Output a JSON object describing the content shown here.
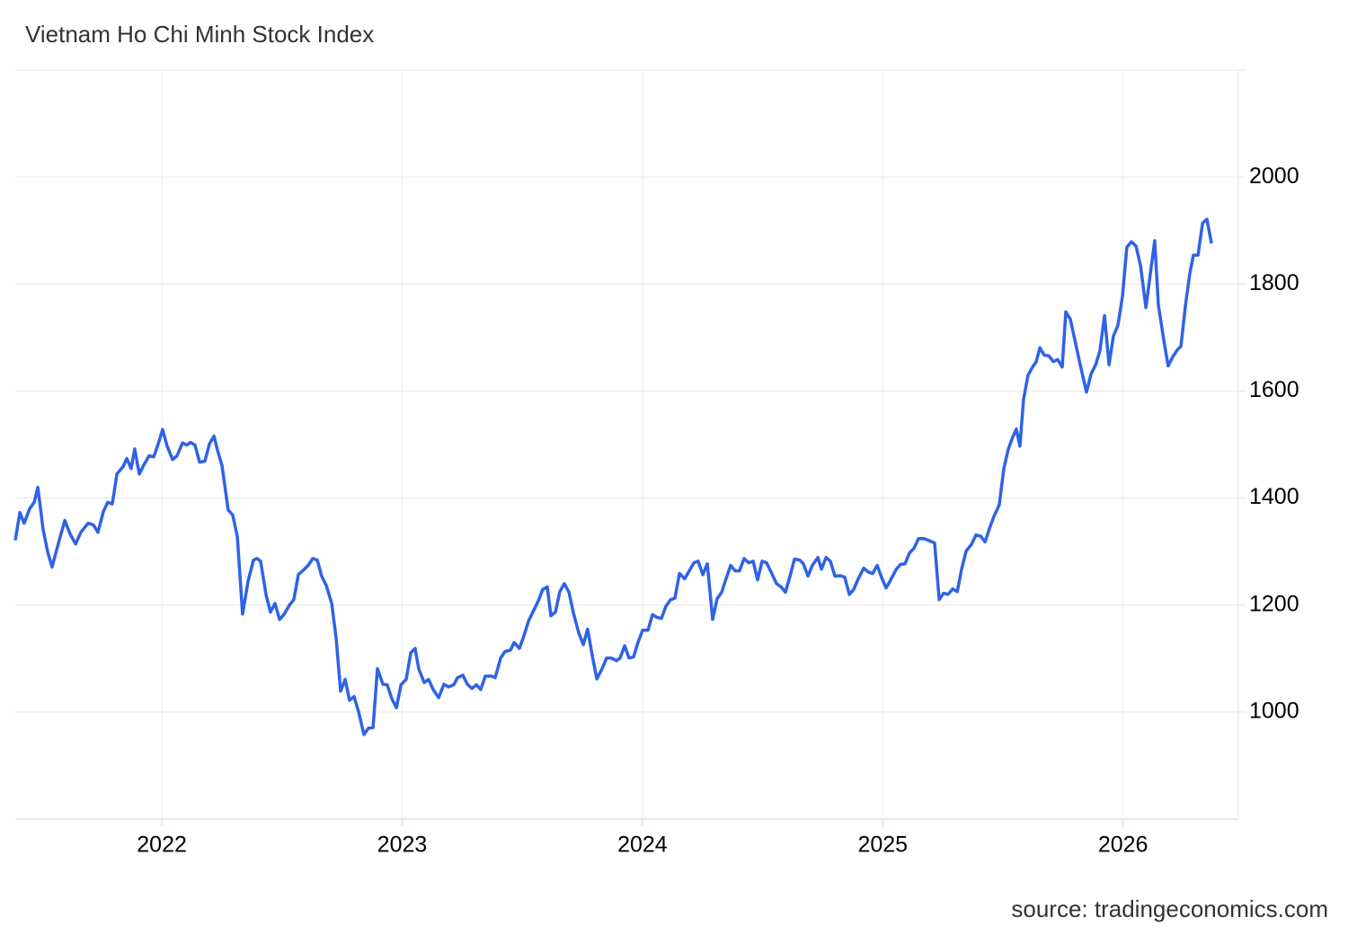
{
  "chart_data": {
    "type": "line",
    "title": "Vietnam Ho Chi Minh Stock Index",
    "source": "source: tradingeconomics.com",
    "xlim": [
      2021.39,
      2026.48
    ],
    "xticks": [
      2022,
      2023,
      2024,
      2025,
      2026
    ],
    "ylim": [
      800,
      2200
    ],
    "yticks": [
      1000,
      1200,
      1400,
      1600,
      1800,
      2000
    ],
    "grid": true,
    "series": [
      {
        "color": "#2f62e8",
        "x": [
          2021.39,
          2021.409,
          2021.427,
          2021.45,
          2021.469,
          2021.484,
          2021.506,
          2021.525,
          2021.543,
          2021.57,
          2021.596,
          2021.618,
          2021.641,
          2021.663,
          2021.693,
          2021.715,
          2021.734,
          2021.757,
          2021.775,
          2021.794,
          2021.813,
          2021.839,
          2021.854,
          2021.872,
          2021.887,
          2021.906,
          2021.925,
          2021.947,
          2021.966,
          2021.985,
          2022.003,
          2022.022,
          2022.045,
          2022.063,
          2022.086,
          2022.104,
          2022.119,
          2022.138,
          2022.157,
          2022.179,
          2022.198,
          2022.217,
          2022.232,
          2022.25,
          2022.276,
          2022.295,
          2022.314,
          2022.336,
          2022.359,
          2022.381,
          2022.396,
          2022.411,
          2022.434,
          2022.452,
          2022.471,
          2022.49,
          2022.508,
          2022.531,
          2022.549,
          2022.568,
          2022.591,
          2022.609,
          2022.628,
          2022.647,
          2022.665,
          2022.684,
          2022.707,
          2022.725,
          2022.744,
          2022.763,
          2022.781,
          2022.8,
          2022.819,
          2022.841,
          2022.86,
          2022.879,
          2022.897,
          2022.92,
          2022.938,
          2022.957,
          2022.976,
          2022.995,
          2023.017,
          2023.036,
          2023.054,
          2023.069,
          2023.092,
          2023.11,
          2023.129,
          2023.152,
          2023.174,
          2023.193,
          2023.215,
          2023.23,
          2023.253,
          2023.271,
          2023.29,
          2023.309,
          2023.327,
          2023.346,
          2023.372,
          2023.387,
          2023.41,
          2023.428,
          2023.451,
          2023.466,
          2023.488,
          2023.507,
          2023.526,
          2023.544,
          2023.567,
          2023.585,
          2023.604,
          2023.619,
          2023.638,
          2023.656,
          2023.675,
          2023.694,
          2023.713,
          2023.735,
          2023.754,
          2023.772,
          2023.791,
          2023.81,
          2023.832,
          2023.851,
          2023.87,
          2023.892,
          2023.907,
          2023.926,
          2023.944,
          2023.963,
          2023.982,
          2024.001,
          2024.023,
          2024.042,
          2024.06,
          2024.079,
          2024.098,
          2024.117,
          2024.135,
          2024.154,
          2024.176,
          2024.195,
          2024.214,
          2024.232,
          2024.251,
          2024.27,
          2024.292,
          2024.311,
          2024.33,
          2024.348,
          2024.367,
          2024.386,
          2024.404,
          2024.423,
          2024.442,
          2024.461,
          2024.479,
          2024.498,
          2024.517,
          2024.535,
          2024.558,
          2024.577,
          2024.595,
          2024.614,
          2024.633,
          2024.655,
          2024.67,
          2024.689,
          2024.707,
          2024.73,
          2024.745,
          2024.764,
          2024.782,
          2024.801,
          2024.823,
          2024.842,
          2024.861,
          2024.879,
          2024.898,
          2024.921,
          2024.939,
          2024.958,
          2024.977,
          2024.995,
          2025.014,
          2025.033,
          2025.055,
          2025.074,
          2025.093,
          2025.111,
          2025.13,
          2025.149,
          2025.171,
          2025.19,
          2025.216,
          2025.235,
          2025.253,
          2025.272,
          2025.291,
          2025.31,
          2025.328,
          2025.347,
          2025.369,
          2025.388,
          2025.407,
          2025.426,
          2025.444,
          2025.463,
          2025.485,
          2025.504,
          2025.523,
          2025.541,
          2025.556,
          2025.571,
          2025.586,
          2025.605,
          2025.624,
          2025.639,
          2025.654,
          2025.672,
          2025.691,
          2025.71,
          2025.728,
          2025.747,
          2025.762,
          2025.781,
          2025.8,
          2025.818,
          2025.833,
          2025.848,
          2025.867,
          2025.886,
          2025.904,
          2025.923,
          2025.942,
          2025.96,
          2025.979,
          2025.998,
          2026.016,
          2026.035,
          2026.054,
          2026.073,
          2026.095,
          2026.114,
          2026.132,
          2026.147,
          2026.17,
          2026.188,
          2026.207,
          2026.226,
          2026.241,
          2026.26,
          2026.278,
          2026.293,
          2026.312,
          2026.331,
          2026.349,
          2026.368
        ],
        "values": [
          1321,
          1373,
          1353,
          1380,
          1392,
          1420,
          1341,
          1299,
          1271,
          1316,
          1358,
          1333,
          1314,
          1336,
          1353,
          1350,
          1336,
          1375,
          1392,
          1389,
          1445,
          1459,
          1474,
          1455,
          1492,
          1445,
          1462,
          1479,
          1477,
          1501,
          1528,
          1497,
          1472,
          1479,
          1503,
          1499,
          1504,
          1499,
          1467,
          1469,
          1501,
          1516,
          1489,
          1461,
          1378,
          1368,
          1328,
          1183,
          1245,
          1284,
          1287,
          1282,
          1218,
          1187,
          1203,
          1173,
          1182,
          1200,
          1210,
          1257,
          1266,
          1274,
          1287,
          1284,
          1254,
          1237,
          1203,
          1139,
          1039,
          1061,
          1022,
          1029,
          1000,
          958,
          970,
          971,
          1081,
          1052,
          1051,
          1025,
          1008,
          1051,
          1061,
          1111,
          1119,
          1081,
          1055,
          1061,
          1042,
          1027,
          1052,
          1047,
          1051,
          1064,
          1069,
          1052,
          1044,
          1051,
          1042,
          1067,
          1067,
          1064,
          1101,
          1113,
          1116,
          1130,
          1119,
          1143,
          1170,
          1187,
          1208,
          1229,
          1234,
          1180,
          1187,
          1225,
          1240,
          1224,
          1185,
          1148,
          1126,
          1155,
          1106,
          1062,
          1081,
          1101,
          1101,
          1096,
          1101,
          1124,
          1101,
          1103,
          1131,
          1153,
          1153,
          1182,
          1177,
          1175,
          1198,
          1210,
          1213,
          1259,
          1249,
          1264,
          1279,
          1282,
          1257,
          1277,
          1173,
          1212,
          1224,
          1249,
          1274,
          1264,
          1264,
          1287,
          1279,
          1282,
          1247,
          1282,
          1279,
          1262,
          1240,
          1234,
          1224,
          1254,
          1286,
          1284,
          1277,
          1254,
          1274,
          1289,
          1267,
          1289,
          1282,
          1254,
          1255,
          1252,
          1220,
          1229,
          1249,
          1269,
          1262,
          1259,
          1274,
          1252,
          1232,
          1247,
          1266,
          1276,
          1277,
          1297,
          1306,
          1324,
          1324,
          1321,
          1316,
          1210,
          1222,
          1220,
          1230,
          1225,
          1267,
          1301,
          1313,
          1331,
          1329,
          1318,
          1343,
          1366,
          1387,
          1455,
          1492,
          1514,
          1529,
          1497,
          1585,
          1630,
          1645,
          1655,
          1681,
          1667,
          1666,
          1655,
          1659,
          1645,
          1748,
          1734,
          1694,
          1657,
          1627,
          1598,
          1632,
          1649,
          1676,
          1741,
          1649,
          1703,
          1723,
          1778,
          1869,
          1879,
          1871,
          1834,
          1756,
          1820,
          1881,
          1761,
          1694,
          1647,
          1664,
          1677,
          1684,
          1761,
          1820,
          1854,
          1854,
          1914,
          1921,
          1876
        ]
      }
    ]
  }
}
